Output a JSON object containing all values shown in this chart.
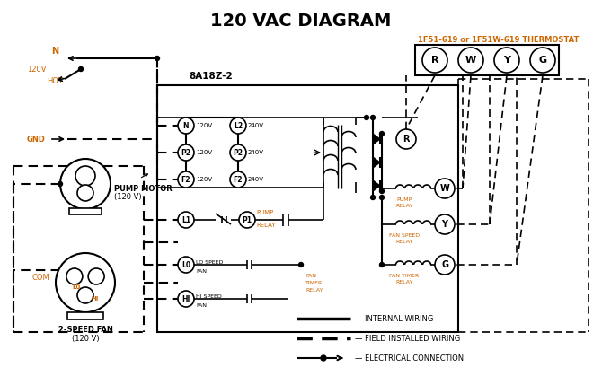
{
  "title": "120 VAC DIAGRAM",
  "bg_color": "#ffffff",
  "line_color": "#000000",
  "orange_color": "#cc6600",
  "thermostat_label": "1F51-619 or 1F51W-619 THERMOSTAT",
  "controller_label": "8A18Z-2",
  "legend_items": [
    {
      "label": "INTERNAL WIRING"
    },
    {
      "label": "FIELD INSTALLED WIRING"
    },
    {
      "label": "ELECTRICAL CONNECTION"
    }
  ]
}
